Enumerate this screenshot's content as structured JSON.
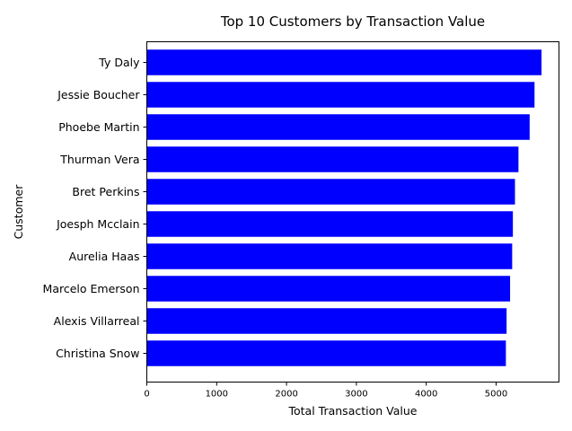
{
  "chart_data": {
    "type": "bar",
    "orientation": "horizontal",
    "title": "Top 10 Customers by Transaction Value",
    "xlabel": "Total Transaction Value",
    "ylabel": "Customer",
    "categories": [
      "Ty Daly",
      "Jessie Boucher",
      "Phoebe Martin",
      "Thurman Vera",
      "Bret Perkins",
      "Joesph Mcclain",
      "Aurelia Haas",
      "Marcelo Emerson",
      "Alexis Villarreal",
      "Christina Snow"
    ],
    "values": [
      5650,
      5550,
      5480,
      5320,
      5270,
      5240,
      5230,
      5200,
      5150,
      5140
    ],
    "xlim": [
      0,
      5900
    ],
    "xticks": [
      0,
      1000,
      2000,
      3000,
      4000,
      5000
    ],
    "bar_color": "#0000ff",
    "grid": false,
    "legend": "none"
  }
}
